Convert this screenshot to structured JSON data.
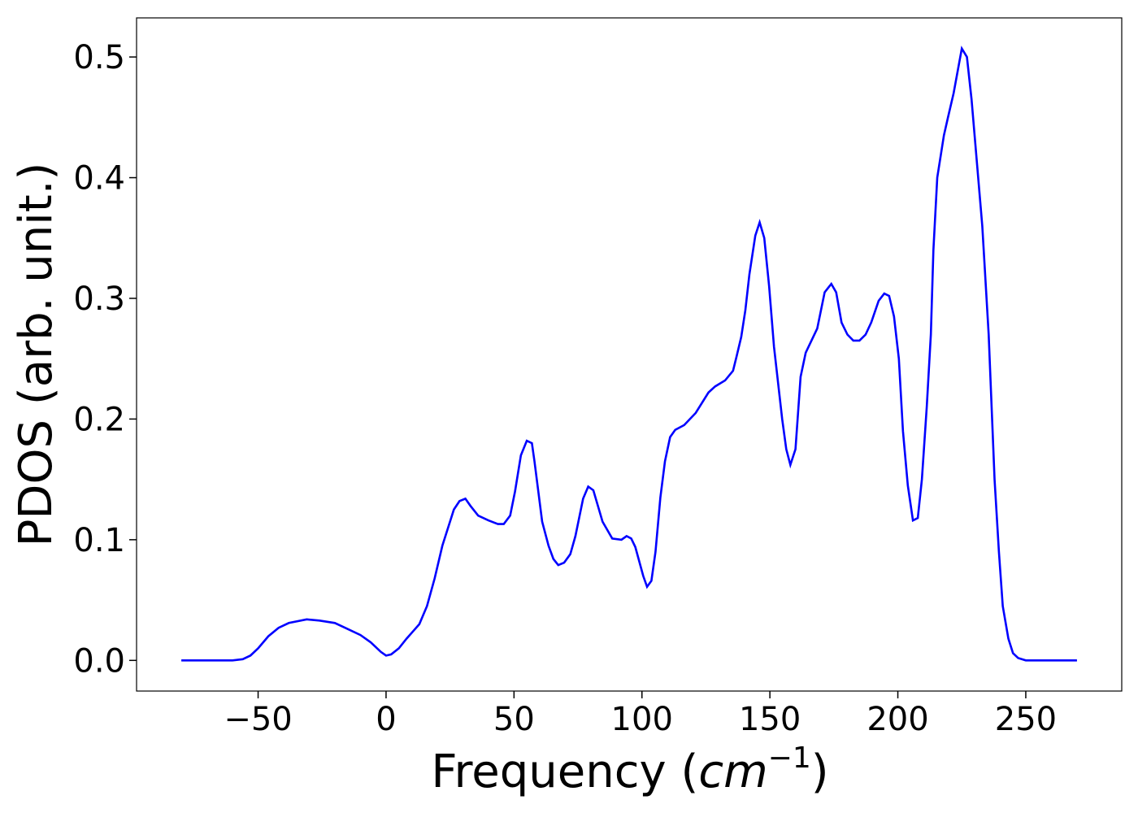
{
  "chart_data": {
    "type": "line",
    "xlabel": [
      "Frequency (",
      "cm",
      "−1",
      ")"
    ],
    "ylabel": "PDOS (arb. unit.)",
    "xlim": [
      -97.5,
      287.5
    ],
    "ylim": [
      -0.0254,
      0.5324
    ],
    "xticks": [
      {
        "value": -50,
        "label": "−50"
      },
      0,
      50,
      100,
      150,
      200,
      250
    ],
    "yticks": [
      {
        "value": 0,
        "label": "0.0"
      },
      0.1,
      0.2,
      0.3,
      0.4,
      0.5
    ],
    "series": [
      {
        "color": "#0000ff",
        "x": [
          -80,
          -60,
          -56,
          -53,
          -50,
          -46,
          -42,
          -38,
          -31,
          -26,
          -20,
          -16,
          -10,
          -6,
          -2,
          0,
          2,
          5,
          8,
          13,
          16,
          19,
          22,
          26.5,
          28.7,
          31,
          33,
          36,
          40,
          43.7,
          46,
          48.5,
          50.4,
          52.7,
          55,
          57,
          58,
          61,
          63.5,
          65.4,
          67.3,
          69.6,
          72,
          74,
          77,
          79,
          81,
          84.6,
          88.4,
          92,
          94,
          95.8,
          97.4,
          100.5,
          102,
          103.7,
          105.3,
          107.2,
          109,
          111,
          113,
          116.5,
          121,
          126,
          128.6,
          132.5,
          135.6,
          137,
          138.8,
          140.4,
          142,
          144.3,
          146,
          147.8,
          149.7,
          151.6,
          154.8,
          156.4,
          158,
          160,
          162,
          164,
          168.5,
          171.4,
          174,
          175.9,
          178,
          180.3,
          182.6,
          185,
          187.4,
          189.6,
          192.5,
          194.7,
          196.6,
          198.5,
          200.4,
          202,
          203.9,
          205.9,
          207.8,
          209.4,
          211.3,
          212.9,
          213.9,
          215.4,
          218,
          219.6,
          221.8,
          225,
          227,
          228.8,
          231,
          233,
          235.5,
          237.8,
          239.5,
          241,
          243.2,
          245,
          247,
          250,
          270
        ],
        "values": [
          0,
          0,
          0.001,
          0.004,
          0.01,
          0.02,
          0.027,
          0.031,
          0.034,
          0.033,
          0.031,
          0.027,
          0.021,
          0.015,
          0.007,
          0.004,
          0.005,
          0.01,
          0.018,
          0.03,
          0.045,
          0.068,
          0.095,
          0.125,
          0.132,
          0.134,
          0.128,
          0.12,
          0.116,
          0.113,
          0.113,
          0.12,
          0.14,
          0.17,
          0.182,
          0.18,
          0.165,
          0.115,
          0.095,
          0.084,
          0.079,
          0.081,
          0.088,
          0.103,
          0.134,
          0.144,
          0.141,
          0.115,
          0.101,
          0.1,
          0.103,
          0.101,
          0.094,
          0.07,
          0.061,
          0.066,
          0.09,
          0.135,
          0.165,
          0.185,
          0.191,
          0.195,
          0.205,
          0.222,
          0.227,
          0.232,
          0.24,
          0.252,
          0.268,
          0.29,
          0.32,
          0.352,
          0.363,
          0.35,
          0.31,
          0.26,
          0.2,
          0.175,
          0.162,
          0.175,
          0.235,
          0.255,
          0.275,
          0.305,
          0.312,
          0.305,
          0.28,
          0.27,
          0.265,
          0.265,
          0.27,
          0.28,
          0.298,
          0.304,
          0.302,
          0.285,
          0.25,
          0.19,
          0.145,
          0.116,
          0.118,
          0.15,
          0.21,
          0.27,
          0.34,
          0.4,
          0.435,
          0.45,
          0.47,
          0.507,
          0.5,
          0.465,
          0.41,
          0.36,
          0.27,
          0.15,
          0.09,
          0.045,
          0.018,
          0.006,
          0.002,
          0,
          0
        ]
      }
    ]
  }
}
